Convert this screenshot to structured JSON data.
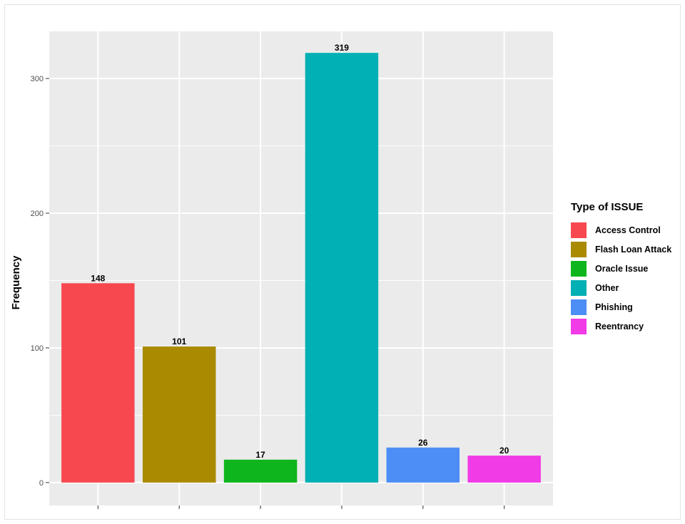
{
  "chart_data": {
    "type": "bar",
    "title": "",
    "xlabel": "",
    "ylabel": "Frequency",
    "categories": [
      "Access Control",
      "Flash Loan Attack",
      "Oracle Issue",
      "Other",
      "Phishing",
      "Reentrancy"
    ],
    "values": [
      148,
      101,
      17,
      319,
      26,
      20
    ],
    "colors": [
      "#F8484F",
      "#AA8A00",
      "#0FB51C",
      "#00B0B4",
      "#4D8EF6",
      "#F03BE6"
    ],
    "ylim": [
      -17,
      335
    ],
    "yticks": [
      0,
      100,
      200,
      300
    ],
    "grid": true,
    "legend_position": "right",
    "legend_title": "Type of ISSUE",
    "background": "#EBEBEB",
    "gridline_color": "#FFFFFF"
  }
}
